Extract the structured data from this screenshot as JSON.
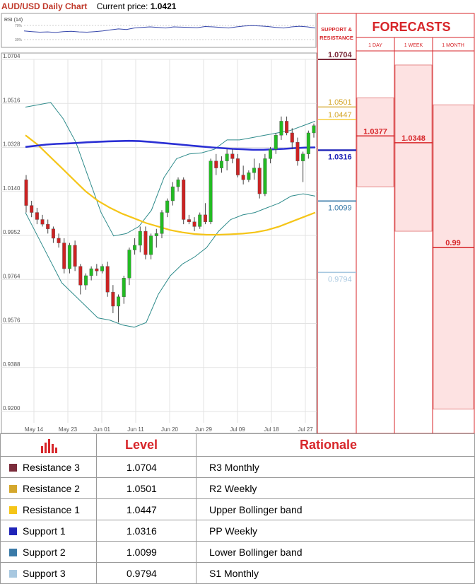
{
  "header": {
    "title": "AUD/USD Daily Chart",
    "price_label": "Current price:",
    "price_value": "1.0421"
  },
  "side_panel": {
    "sr_header": "SUPPORT & RESISTANCE",
    "forecasts_header": "FORECASTS",
    "columns": [
      "1 DAY",
      "1 WEEK",
      "1 MONTH"
    ]
  },
  "colors": {
    "accent_red": "#d7262a",
    "r3": "#7b2c3b",
    "r2": "#d4a72c",
    "r1": "#f5c518",
    "s1": "#1f24b8",
    "s2": "#3a7aa8",
    "s3": "#a8c8e0",
    "bullish": "#22bb22",
    "bearish": "#cc2222",
    "ma_blue": "#2a2fd4",
    "ma_yellow": "#f5c518",
    "bollinger": "#2e8b8b"
  },
  "chart_data": [
    {
      "type": "line",
      "title": "RSI (14)",
      "ytick_labels": [
        "70%",
        "30%"
      ],
      "ylim": [
        0,
        100
      ],
      "series": [
        {
          "values": [
            48,
            46,
            44,
            45,
            43,
            46,
            47,
            45,
            44,
            46,
            48,
            52,
            55,
            53,
            58,
            60,
            62,
            60,
            58,
            62,
            61,
            60,
            59,
            63,
            62,
            60,
            58,
            62,
            65,
            66,
            65,
            63,
            60,
            58,
            62,
            64,
            62,
            58
          ]
        }
      ]
    },
    {
      "type": "candlestick",
      "ylim": [
        0.92,
        1.0704
      ],
      "ytick_labels": [
        "1.0704",
        "1.0516",
        "1.0328",
        "1.0140",
        "0.9952",
        "0.9764",
        "0.9576",
        "0.9388",
        "0.9200"
      ],
      "xtick_labels": [
        "May 14",
        "May 23",
        "Jun 01",
        "Jun 11",
        "Jun 20",
        "Jun 29",
        "Jul 09",
        "Jul 18",
        "Jul 27"
      ],
      "candles": [
        {
          "o": 1.019,
          "h": 1.021,
          "l": 1.005,
          "c": 1.008
        },
        {
          "o": 1.008,
          "h": 1.01,
          "l": 1.003,
          "c": 1.005
        },
        {
          "o": 1.005,
          "h": 1.007,
          "l": 1.0,
          "c": 1.002
        },
        {
          "o": 1.002,
          "h": 1.004,
          "l": 0.999,
          "c": 1.0
        },
        {
          "o": 1.0,
          "h": 1.002,
          "l": 0.996,
          "c": 0.998
        },
        {
          "o": 0.998,
          "h": 0.999,
          "l": 0.992,
          "c": 0.994
        },
        {
          "o": 0.994,
          "h": 0.996,
          "l": 0.99,
          "c": 0.992
        },
        {
          "o": 0.992,
          "h": 0.994,
          "l": 0.979,
          "c": 0.981
        },
        {
          "o": 0.981,
          "h": 0.992,
          "l": 0.979,
          "c": 0.991
        },
        {
          "o": 0.991,
          "h": 0.993,
          "l": 0.98,
          "c": 0.982
        },
        {
          "o": 0.982,
          "h": 0.983,
          "l": 0.97,
          "c": 0.974
        },
        {
          "o": 0.974,
          "h": 0.979,
          "l": 0.972,
          "c": 0.978
        },
        {
          "o": 0.978,
          "h": 0.982,
          "l": 0.976,
          "c": 0.981
        },
        {
          "o": 0.981,
          "h": 0.983,
          "l": 0.978,
          "c": 0.98
        },
        {
          "o": 0.98,
          "h": 0.983,
          "l": 0.979,
          "c": 0.982
        },
        {
          "o": 0.982,
          "h": 0.984,
          "l": 0.969,
          "c": 0.971
        },
        {
          "o": 0.971,
          "h": 0.974,
          "l": 0.962,
          "c": 0.965
        },
        {
          "o": 0.965,
          "h": 0.97,
          "l": 0.958,
          "c": 0.969
        },
        {
          "o": 0.969,
          "h": 0.978,
          "l": 0.966,
          "c": 0.977
        },
        {
          "o": 0.977,
          "h": 0.99,
          "l": 0.974,
          "c": 0.989
        },
        {
          "o": 0.989,
          "h": 0.994,
          "l": 0.987,
          "c": 0.991
        },
        {
          "o": 0.991,
          "h": 0.999,
          "l": 0.988,
          "c": 0.997
        },
        {
          "o": 0.997,
          "h": 0.999,
          "l": 0.985,
          "c": 0.987
        },
        {
          "o": 0.987,
          "h": 0.996,
          "l": 0.985,
          "c": 0.995
        },
        {
          "o": 0.995,
          "h": 0.998,
          "l": 0.99,
          "c": 0.996
        },
        {
          "o": 0.996,
          "h": 1.006,
          "l": 0.994,
          "c": 1.005
        },
        {
          "o": 1.005,
          "h": 1.011,
          "l": 1.003,
          "c": 1.01
        },
        {
          "o": 1.01,
          "h": 1.018,
          "l": 1.008,
          "c": 1.016
        },
        {
          "o": 1.016,
          "h": 1.02,
          "l": 1.014,
          "c": 1.019
        },
        {
          "o": 1.019,
          "h": 1.02,
          "l": 1.0,
          "c": 1.002
        },
        {
          "o": 1.002,
          "h": 1.004,
          "l": 1.0,
          "c": 1.001
        },
        {
          "o": 1.001,
          "h": 1.003,
          "l": 0.997,
          "c": 0.999
        },
        {
          "o": 0.999,
          "h": 1.005,
          "l": 0.998,
          "c": 1.004
        },
        {
          "o": 1.004,
          "h": 1.009,
          "l": 1.0,
          "c": 1.001
        },
        {
          "o": 1.001,
          "h": 1.028,
          "l": 1.0,
          "c": 1.027
        },
        {
          "o": 1.027,
          "h": 1.03,
          "l": 1.021,
          "c": 1.024
        },
        {
          "o": 1.024,
          "h": 1.029,
          "l": 1.022,
          "c": 1.027
        },
        {
          "o": 1.027,
          "h": 1.032,
          "l": 1.023,
          "c": 1.03
        },
        {
          "o": 1.03,
          "h": 1.032,
          "l": 1.026,
          "c": 1.028
        },
        {
          "o": 1.028,
          "h": 1.03,
          "l": 1.02,
          "c": 1.021
        },
        {
          "o": 1.021,
          "h": 1.025,
          "l": 1.017,
          "c": 1.019
        },
        {
          "o": 1.019,
          "h": 1.023,
          "l": 1.018,
          "c": 1.022
        },
        {
          "o": 1.022,
          "h": 1.028,
          "l": 1.019,
          "c": 1.024
        },
        {
          "o": 1.024,
          "h": 1.026,
          "l": 1.011,
          "c": 1.013
        },
        {
          "o": 1.013,
          "h": 1.03,
          "l": 1.012,
          "c": 1.028
        },
        {
          "o": 1.028,
          "h": 1.033,
          "l": 1.026,
          "c": 1.032
        },
        {
          "o": 1.032,
          "h": 1.039,
          "l": 1.03,
          "c": 1.038
        },
        {
          "o": 1.038,
          "h": 1.046,
          "l": 1.036,
          "c": 1.044
        },
        {
          "o": 1.044,
          "h": 1.046,
          "l": 1.038,
          "c": 1.039
        },
        {
          "o": 1.039,
          "h": 1.041,
          "l": 1.032,
          "c": 1.035
        },
        {
          "o": 1.035,
          "h": 1.037,
          "l": 1.025,
          "c": 1.027
        },
        {
          "o": 1.027,
          "h": 1.031,
          "l": 1.018,
          "c": 1.03
        },
        {
          "o": 1.03,
          "h": 1.04,
          "l": 1.028,
          "c": 1.039
        },
        {
          "o": 1.039,
          "h": 1.043,
          "l": 1.037,
          "c": 1.0421
        }
      ],
      "ma_blue": [
        1.033,
        1.0335,
        1.034,
        1.0343,
        1.0345,
        1.0347,
        1.035,
        1.0352,
        1.0354,
        1.0355,
        1.0356,
        1.0355,
        1.0352,
        1.0348,
        1.0344,
        1.034,
        1.0336,
        1.0332,
        1.0328,
        1.0325,
        1.0322,
        1.032,
        1.0318,
        1.0318,
        1.032,
        1.0322,
        1.0325,
        1.0327,
        1.0328
      ],
      "ma_yellow": [
        1.038,
        1.034,
        1.029,
        1.024,
        1.019,
        1.014,
        1.01,
        1.007,
        1.0045,
        1.0025,
        1.0005,
        0.999,
        0.9975,
        0.9965,
        0.9958,
        0.9955,
        0.9955,
        0.9957,
        0.996,
        0.9965,
        0.9975,
        0.999,
        1.001,
        1.003,
        1.005
      ],
      "bollinger_upper": [
        1.05,
        1.051,
        1.052,
        1.045,
        1.035,
        1.02,
        1.005,
        0.995,
        0.996,
        0.999,
        1.006,
        1.02,
        1.028,
        1.03,
        1.0305,
        1.032,
        1.036,
        1.036,
        1.037,
        1.038,
        1.039,
        1.04,
        1.042,
        1.044
      ],
      "bollinger_lower": [
        1.005,
        0.995,
        0.985,
        0.975,
        0.97,
        0.965,
        0.96,
        0.959,
        0.957,
        0.956,
        0.958,
        0.97,
        0.978,
        0.983,
        0.986,
        0.99,
        0.997,
        1.002,
        1.004,
        1.005,
        1.007,
        1.009,
        1.012,
        1.013,
        1.012
      ]
    },
    {
      "type": "table",
      "levels": [
        {
          "name": "Resistance 3",
          "value": 1.0704
        },
        {
          "name": "Resistance 2",
          "value": 1.0501
        },
        {
          "name": "Resistance 1",
          "value": 1.0447
        },
        {
          "name": "Support 1",
          "value": 1.0316
        },
        {
          "name": "Support 2",
          "value": 1.0099
        },
        {
          "name": "Support 3",
          "value": 0.9794
        }
      ],
      "forecasts": [
        {
          "label": "1 DAY",
          "value": 1.0377,
          "low": 1.016,
          "high": 1.054
        },
        {
          "label": "1 WEEK",
          "value": 1.0348,
          "low": 0.997,
          "high": 1.068
        },
        {
          "label": "1 MONTH",
          "value": 0.99,
          "low": 0.921,
          "high": 1.051
        }
      ]
    }
  ],
  "side_labels": {
    "r3": "1.0704",
    "r2": "1.0501",
    "r1": "1.0447",
    "s1": "1.0316",
    "s2": "1.0099",
    "s3": "0.9794",
    "f1": "1.0377",
    "f2": "1.0348",
    "f3": "0.99"
  },
  "table": {
    "headers": {
      "level": "Level",
      "rationale": "Rationale"
    },
    "rows": [
      {
        "name": "Resistance 3",
        "level": "1.0704",
        "rationale": "R3 Monthly",
        "color": "#7b2c3b"
      },
      {
        "name": "Resistance 2",
        "level": "1.0501",
        "rationale": "R2 Weekly",
        "color": "#d4a72c"
      },
      {
        "name": "Resistance 1",
        "level": "1.0447",
        "rationale": "Upper Bollinger band",
        "color": "#f5c518"
      },
      {
        "name": "Support 1",
        "level": "1.0316",
        "rationale": "PP Weekly",
        "color": "#1f24b8"
      },
      {
        "name": "Support 2",
        "level": "1.0099",
        "rationale": "Lower Bollinger band",
        "color": "#3a7aa8"
      },
      {
        "name": "Support 3",
        "level": "0.9794",
        "rationale": "S1 Monthly",
        "color": "#a8c8e0"
      }
    ]
  }
}
